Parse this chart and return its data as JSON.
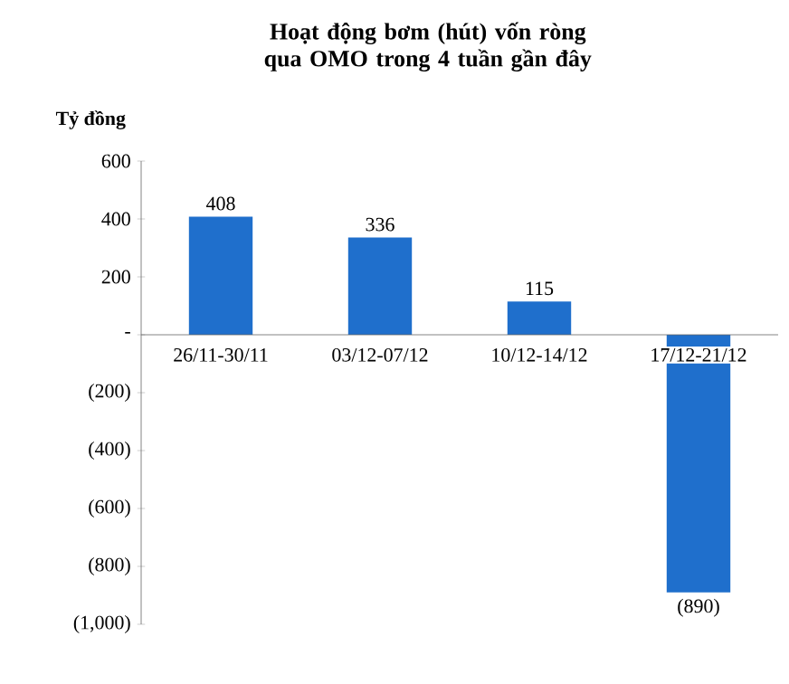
{
  "chart_data": {
    "type": "bar",
    "title": "Hoạt động bơm (hút) vốn ròng qua OMO trong 4 tuần gần đây",
    "ylabel": "Tỷ đồng",
    "categories": [
      "26/11-30/11",
      "03/12-07/12",
      "10/12-14/12",
      "17/12-21/12"
    ],
    "values": [
      408,
      336,
      115,
      -890
    ],
    "value_labels": [
      "408",
      "336",
      "115",
      "(890)"
    ],
    "color": "#1f6fcc",
    "ylim": [
      -1000,
      600
    ],
    "yticks": [
      600,
      400,
      200,
      {
        "value": 0,
        "label": "-"
      },
      {
        "value": -200,
        "label": "(200)"
      },
      {
        "value": -400,
        "label": "(400)"
      },
      {
        "value": -600,
        "label": "(600)"
      },
      {
        "value": -800,
        "label": "(800)"
      },
      {
        "value": -1000,
        "label": "(1,000)"
      }
    ],
    "grid": false
  }
}
